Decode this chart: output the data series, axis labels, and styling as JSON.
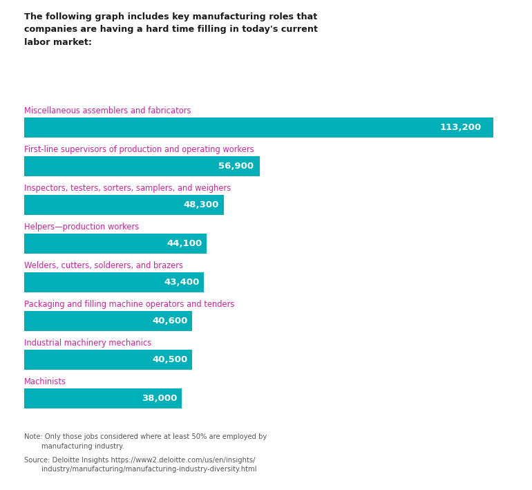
{
  "title_lines": [
    "The following graph includes key manufacturing roles that",
    "companies are having a hard time filling in today's current",
    "labor market:"
  ],
  "categories": [
    "Miscellaneous assemblers and fabricators",
    "First-line supervisors of production and operating workers",
    "Inspectors, testers, sorters, samplers, and weighers",
    "Helpers—production workers",
    "Welders, cutters, solderers, and brazers",
    "Packaging and filling machine operators and tenders",
    "Industrial machinery mechanics",
    "Machinists"
  ],
  "values": [
    113200,
    56900,
    48300,
    44100,
    43400,
    40600,
    40500,
    38000
  ],
  "value_labels": [
    "113,200",
    "56,900",
    "48,300",
    "44,100",
    "43,400",
    "40,600",
    "40,500",
    "38,000"
  ],
  "bar_color": "#00B0B9",
  "label_color": "#CC2299",
  "title_color": "#1a1a1a",
  "value_text_color": "#ffffff",
  "note_text": "Note: Only those jobs considered where at least 50% are employed by\n        manufacturing industry.",
  "source_text": "Source: Deloitte Insights https://www2.deloitte.com/us/en/insights/\n        industry/manufacturing/manufacturing-industry-diversity.html",
  "note_color": "#555555",
  "bar_height": 0.52,
  "max_value": 120000,
  "background_color": "#ffffff"
}
